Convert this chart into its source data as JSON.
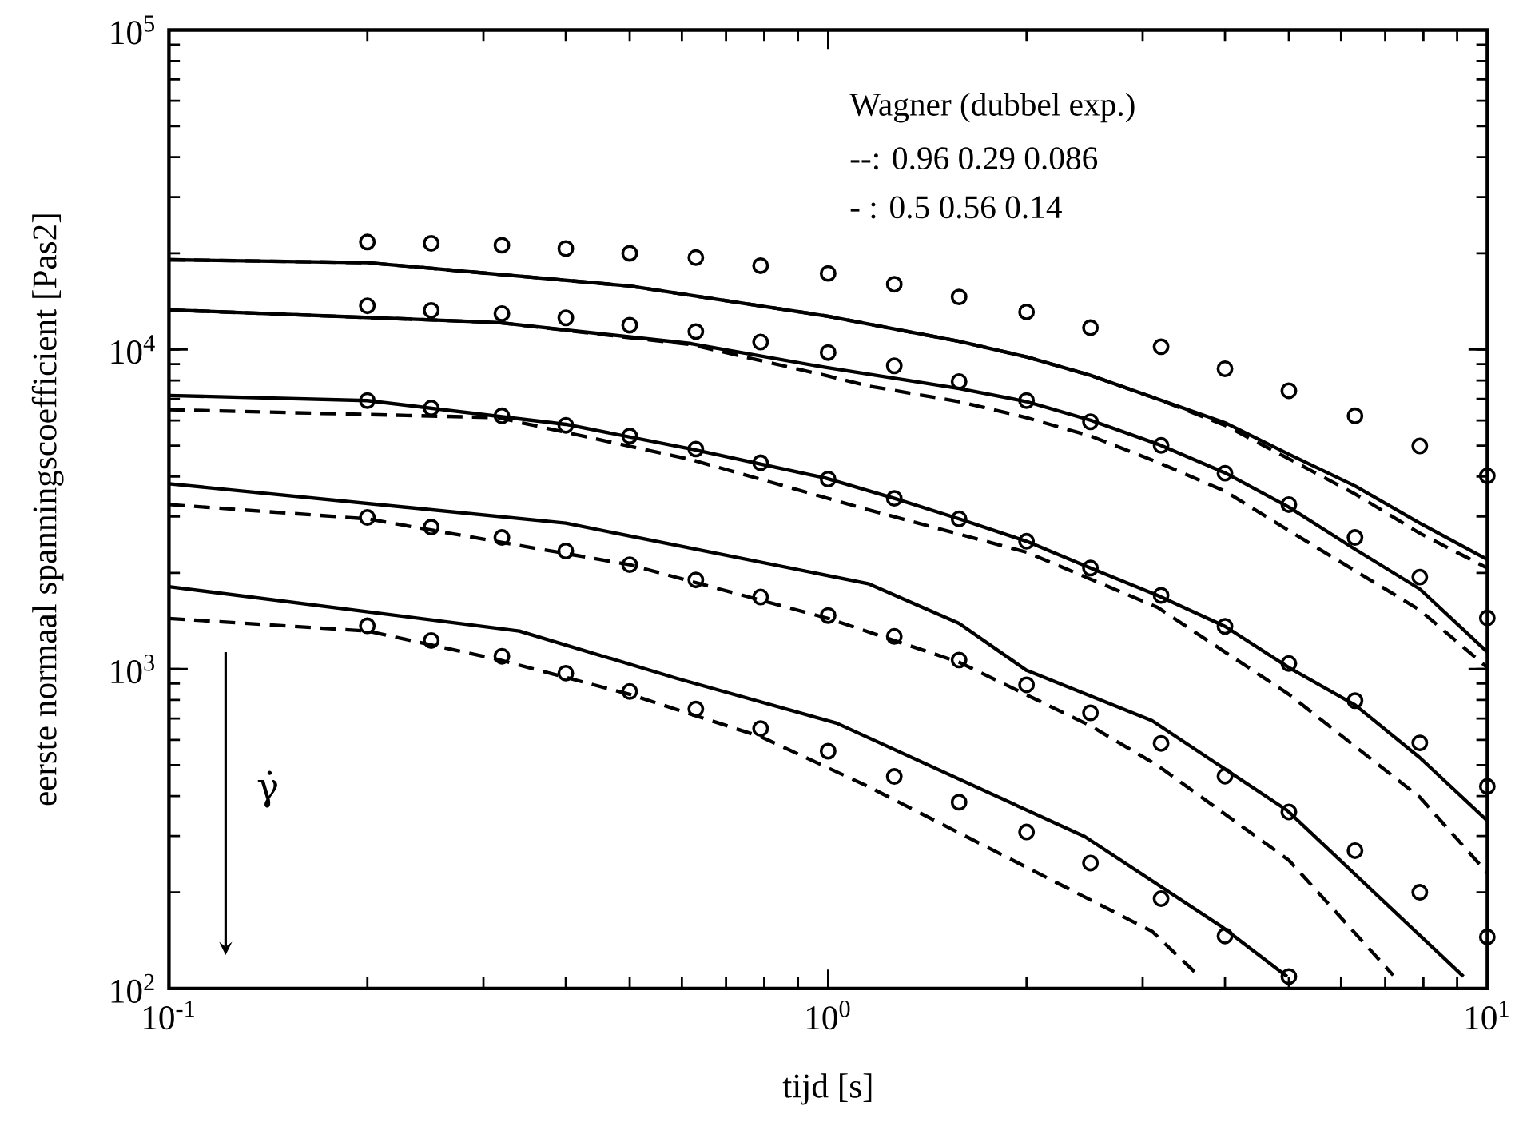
{
  "chart_data": {
    "type": "line",
    "xlabel": "tijd [s]",
    "ylabel": "eerste normaal spanningscoefficient [Pas2]",
    "log": "xy",
    "grid": false,
    "xlim": [
      0.1,
      10
    ],
    "ylim": [
      100,
      100000
    ],
    "xticks": [
      {
        "value": 0.1,
        "label": "10$^{-1}$"
      },
      {
        "value": 1,
        "label": "10$^{0}$"
      },
      {
        "value": 10,
        "label": "10$^{1}$"
      }
    ],
    "yticks": [
      {
        "value": 100,
        "label": "10$^{2}$"
      },
      {
        "value": 1000,
        "label": "10$^{3}$"
      },
      {
        "value": 10000,
        "label": "10$^{4}$"
      },
      {
        "value": 100000,
        "label": "10$^{5}$"
      }
    ],
    "annotations": [
      "Wagner (dubbel exp.)",
      "--: 0.96 0.29 0.086",
      "- : 0.5 0.56 0.14",
      "γ̇"
    ],
    "series": [
      {
        "type": "scatter",
        "marker": "circle",
        "color": "#000000",
        "x": [
          0.2,
          0.25,
          0.32,
          0.4,
          0.5,
          0.63,
          0.79,
          1.0,
          1.26,
          1.58,
          2.0,
          2.5,
          3.2,
          4.0,
          5.0,
          6.3,
          7.9,
          10
        ],
        "values": [
          21700,
          21500,
          21200,
          20700,
          20000,
          19400,
          18300,
          17300,
          16000,
          14600,
          13100,
          11700,
          10200,
          8700,
          7430,
          6200,
          4990,
          4020
        ]
      },
      {
        "type": "scatter",
        "marker": "circle",
        "color": "#000000",
        "x": [
          0.2,
          0.25,
          0.32,
          0.4,
          0.5,
          0.63,
          0.79,
          1.0,
          1.26,
          1.58,
          2.0,
          2.5,
          3.2,
          4.0,
          5.0,
          6.3,
          7.9,
          10
        ],
        "values": [
          13700,
          13250,
          12950,
          12560,
          11910,
          11380,
          10550,
          9780,
          8890,
          7940,
          6920,
          5940,
          5010,
          4100,
          3270,
          2580,
          1940,
          1445
        ]
      },
      {
        "type": "scatter",
        "marker": "circle",
        "color": "#000000",
        "x": [
          0.2,
          0.25,
          0.32,
          0.4,
          0.5,
          0.63,
          0.79,
          1.0,
          1.26,
          1.58,
          2.0,
          2.5,
          3.2,
          4.0,
          5.0,
          6.3,
          7.9,
          10
        ],
        "values": [
          6920,
          6560,
          6200,
          5790,
          5360,
          4880,
          4420,
          3930,
          3420,
          2950,
          2510,
          2070,
          1700,
          1360,
          1040,
          796,
          587,
          429
        ]
      },
      {
        "type": "scatter",
        "marker": "circle",
        "color": "#000000",
        "x": [
          0.2,
          0.25,
          0.32,
          0.4,
          0.5,
          0.63,
          0.79,
          1.0,
          1.26,
          1.58,
          2.0,
          2.5,
          3.2,
          4.0,
          5.0,
          6.3,
          7.9,
          10
        ],
        "values": [
          2980,
          2780,
          2580,
          2340,
          2120,
          1900,
          1680,
          1470,
          1265,
          1067,
          892,
          729,
          585,
          462,
          357,
          270,
          200,
          145
        ]
      },
      {
        "type": "scatter",
        "marker": "circle",
        "color": "#000000",
        "x": [
          0.2,
          0.25,
          0.32,
          0.4,
          0.5,
          0.63,
          0.79,
          1.0,
          1.26,
          1.58,
          2.0,
          2.5,
          3.2,
          4.0,
          5.0
        ],
        "values": [
          1365,
          1228,
          1096,
          970,
          850,
          750,
          651,
          553,
          461,
          383,
          309,
          247,
          191,
          146,
          109
        ]
      },
      {
        "type": "line",
        "line_style": "solid",
        "color": "#000000",
        "x": [
          0.1,
          0.2,
          0.5,
          1,
          1.58,
          2,
          2.5,
          3.16,
          4,
          5,
          6.3,
          7.9,
          10
        ],
        "values": [
          19100,
          18700,
          15800,
          12700,
          10600,
          9480,
          8300,
          7000,
          5900,
          4700,
          3740,
          2860,
          2200
        ]
      },
      {
        "type": "line",
        "line_style": "dashed",
        "color": "#000000",
        "x": [
          0.1,
          0.2,
          0.5,
          1,
          1.58,
          2,
          2.5,
          3.16,
          4,
          5,
          6.3,
          7.9,
          10
        ],
        "values": [
          19100,
          18700,
          15800,
          12700,
          10600,
          9480,
          8300,
          7000,
          5790,
          4550,
          3530,
          2660,
          2070
        ]
      },
      {
        "type": "line",
        "line_style": "solid",
        "color": "#000000",
        "x": [
          0.1,
          0.316,
          0.62,
          0.99,
          1.58,
          2,
          2.5,
          3.16,
          4,
          5,
          6.3,
          7.9,
          10
        ],
        "values": [
          13300,
          12140,
          10430,
          8790,
          7550,
          6870,
          6010,
          5060,
          4110,
          3210,
          2370,
          1780,
          1130
        ]
      },
      {
        "type": "line",
        "line_style": "dashed",
        "color": "#000000",
        "x": [
          0.1,
          0.316,
          0.62,
          0.99,
          1.15,
          1.58,
          2,
          2.5,
          3.16,
          4,
          5,
          6.3,
          7.9,
          10
        ],
        "values": [
          13300,
          12140,
          10350,
          8300,
          7690,
          6870,
          6120,
          5360,
          4440,
          3600,
          2710,
          2030,
          1530,
          1010
        ]
      },
      {
        "type": "line",
        "line_style": "solid",
        "color": "#000000",
        "x": [
          0.1,
          0.2,
          0.4,
          0.62,
          0.99,
          1.26,
          1.58,
          2,
          2.5,
          3.16,
          4,
          5,
          6.3,
          7.9,
          10
        ],
        "values": [
          7180,
          6920,
          5830,
          4880,
          3960,
          3420,
          2950,
          2510,
          2070,
          1700,
          1360,
          1010,
          772,
          528,
          335
        ]
      },
      {
        "type": "line",
        "line_style": "dashed",
        "color": "#000000",
        "x": [
          0.1,
          0.316,
          0.62,
          1.15,
          2,
          3.16,
          5,
          7.9,
          10
        ],
        "values": [
          6480,
          6120,
          4520,
          3150,
          2320,
          1560,
          833,
          397,
          230
        ]
      },
      {
        "type": "line",
        "line_style": "solid",
        "color": "#000000",
        "x": [
          0.1,
          0.4,
          1.15,
          1.58,
          2,
          3.1,
          4.97,
          9.2
        ],
        "values": [
          3800,
          2860,
          1850,
          1390,
          990,
          689,
          361,
          109
        ]
      },
      {
        "type": "line",
        "line_style": "dashed",
        "color": "#000000",
        "x": [
          0.1,
          0.2,
          0.5,
          1,
          1.58,
          2.5,
          3.16,
          5,
          7.2
        ],
        "values": [
          3270,
          2950,
          2120,
          1440,
          1050,
          664,
          499,
          252,
          110
        ]
      },
      {
        "type": "line",
        "line_style": "solid",
        "color": "#000000",
        "x": [
          0.1,
          0.34,
          0.59,
          1.03,
          2.45,
          3.94,
          4.97
        ],
        "values": [
          1810,
          1315,
          934,
          677,
          299,
          157,
          109
        ]
      },
      {
        "type": "line",
        "line_style": "dashed",
        "color": "#000000",
        "x": [
          0.1,
          0.2,
          0.316,
          0.5,
          0.79,
          1.15,
          3.1,
          3.66
        ],
        "values": [
          1440,
          1315,
          1070,
          833,
          614,
          429,
          151,
          109
        ]
      }
    ]
  }
}
